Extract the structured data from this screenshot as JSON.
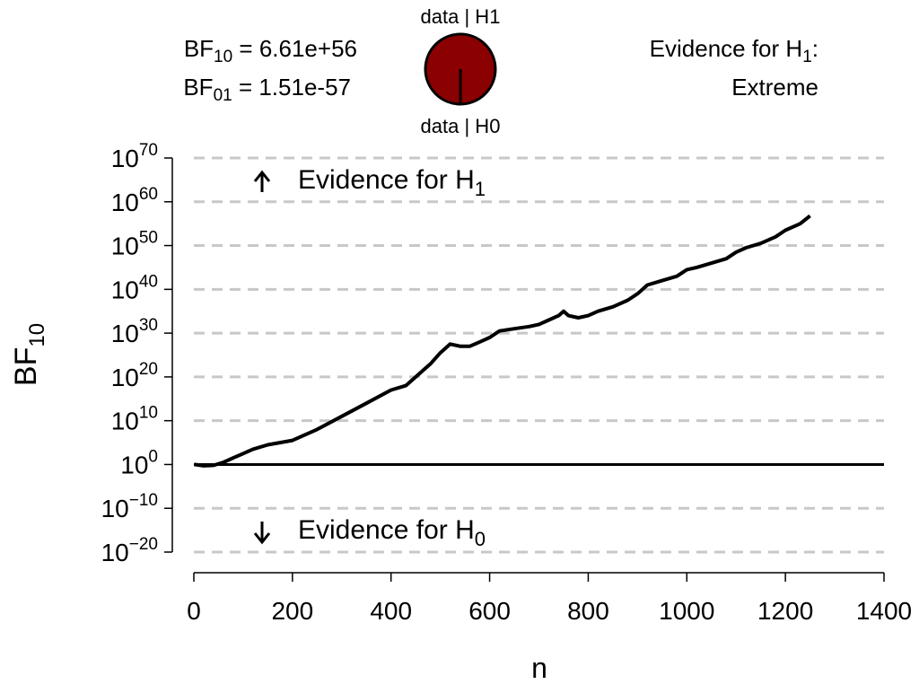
{
  "header": {
    "bf10_label": {
      "main": "BF",
      "sub": "10",
      "rest": " = 6.61e+56"
    },
    "bf01_label": {
      "main": "BF",
      "sub": "01",
      "rest": " = 1.51e-57"
    },
    "pizza_top_label": "data | H1",
    "pizza_bottom_label": "data | H0",
    "evidence_title": {
      "main": "Evidence for H",
      "sub": "1",
      "rest": ":"
    },
    "evidence_category": "Extreme",
    "pizza_fraction_h1": 1.0,
    "pizza_color": "#8b0000"
  },
  "chart_data": {
    "type": "line",
    "xlabel": "n",
    "ylabel": {
      "main": "BF",
      "sub": "10"
    },
    "xlim": [
      0,
      1400
    ],
    "xticks": [
      0,
      200,
      400,
      600,
      800,
      1000,
      1200,
      1400
    ],
    "yscale": "log10",
    "ylim_exponent": [
      -20,
      70
    ],
    "yticks_exponent": [
      -20,
      -10,
      0,
      10,
      20,
      30,
      40,
      50,
      60,
      70
    ],
    "ytick_labels": [
      {
        "base": "10",
        "exp": "−20"
      },
      {
        "base": "10",
        "exp": "−10"
      },
      {
        "base": "10",
        "exp": "0"
      },
      {
        "base": "10",
        "exp": "10"
      },
      {
        "base": "10",
        "exp": "20"
      },
      {
        "base": "10",
        "exp": "30"
      },
      {
        "base": "10",
        "exp": "40"
      },
      {
        "base": "10",
        "exp": "50"
      },
      {
        "base": "10",
        "exp": "60"
      },
      {
        "base": "10",
        "exp": "70"
      }
    ],
    "xtick_labels": [
      "0",
      "200",
      "400",
      "600",
      "800",
      "1000",
      "1200",
      "1400"
    ],
    "grid": "horizontal dashed",
    "reference_line_exponent": 0,
    "annotations": {
      "up": {
        "main": "Evidence for H",
        "sub": "1"
      },
      "down": {
        "main": "Evidence for H",
        "sub": "0"
      }
    },
    "series": [
      {
        "n": [
          1,
          20,
          40,
          60,
          80,
          100,
          120,
          150,
          200,
          250,
          300,
          350,
          400,
          430,
          450,
          480,
          500,
          520,
          540,
          560,
          580,
          600,
          620,
          650,
          680,
          700,
          720,
          740,
          750,
          760,
          780,
          800,
          820,
          850,
          880,
          900,
          920,
          950,
          980,
          1000,
          1020,
          1050,
          1080,
          1100,
          1120,
          1150,
          1180,
          1200,
          1230,
          1250
        ],
        "log10_bf": [
          0,
          -0.3,
          -0.2,
          0.5,
          1.5,
          2.5,
          3.5,
          4.5,
          5.5,
          8.0,
          11.0,
          14.0,
          17.0,
          18.0,
          20.0,
          23.0,
          25.5,
          27.5,
          27.0,
          27.0,
          28.0,
          29.0,
          30.5,
          31.0,
          31.5,
          32.0,
          33.0,
          34.0,
          35.0,
          34.0,
          33.5,
          34.0,
          35.0,
          36.0,
          37.5,
          39.0,
          41.0,
          42.0,
          43.0,
          44.5,
          45.0,
          46.0,
          47.0,
          48.5,
          49.5,
          50.5,
          52.0,
          53.5,
          55.0,
          56.8
        ]
      }
    ]
  }
}
